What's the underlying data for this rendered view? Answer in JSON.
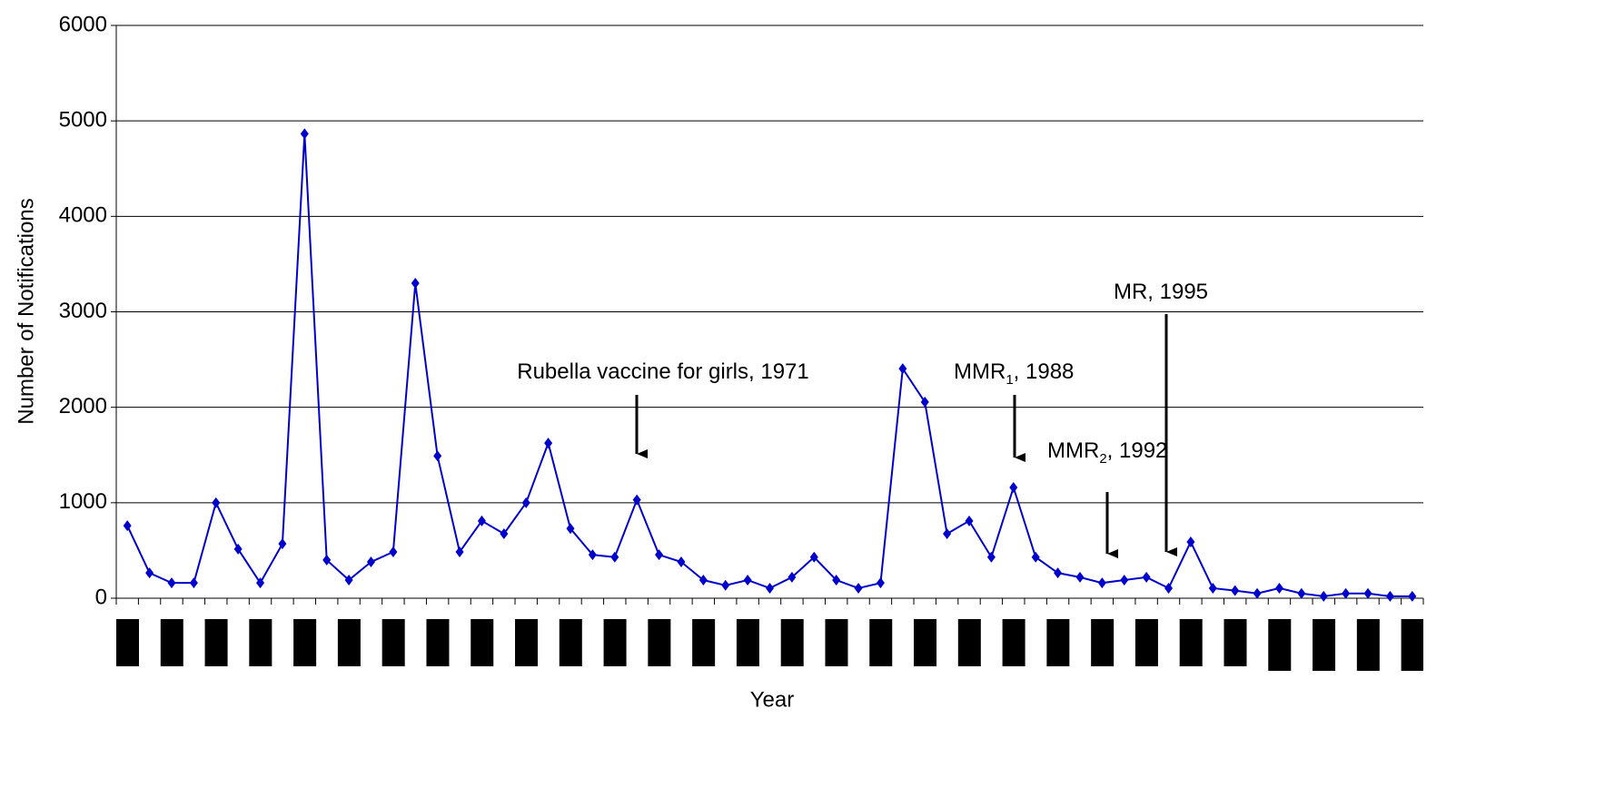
{
  "chart_data": {
    "type": "line",
    "x_label": "Year",
    "y_label": "Number of Notifications",
    "categories": [
      null,
      null,
      null,
      null,
      null,
      null,
      null,
      null,
      null,
      null,
      null,
      null,
      null,
      null,
      null,
      null,
      null,
      null,
      null,
      null,
      null,
      null,
      null,
      null,
      null,
      null,
      null,
      null,
      null,
      null,
      null,
      null,
      null,
      null,
      null,
      null,
      null,
      null,
      null,
      null,
      null,
      null,
      null,
      null,
      null,
      null,
      null,
      null,
      null,
      null,
      null,
      null,
      null,
      null,
      null,
      null,
      null,
      null,
      null
    ],
    "series": [
      {
        "name": null,
        "color": "#0000cc",
        "values": [
          760,
          265,
          160,
          160,
          1000,
          515,
          160,
          570,
          4865,
          400,
          190,
          380,
          485,
          3300,
          1490,
          485,
          810,
          675,
          1000,
          1625,
          730,
          455,
          430,
          1030,
          455,
          380,
          190,
          135,
          190,
          105,
          220,
          430,
          190,
          105,
          160,
          2405,
          2055,
          675,
          810,
          430,
          1160,
          430,
          265,
          220,
          160,
          190,
          220,
          105,
          590,
          105,
          80,
          50,
          105,
          50,
          20,
          50,
          50,
          20,
          20
        ]
      }
    ],
    "ylim": [
      0,
      6000
    ],
    "yticks": [
      0,
      1000,
      2000,
      3000,
      4000,
      5000,
      6000
    ],
    "grid": true,
    "annotations": [
      {
        "text": "Rubella vaccine for girls, 1971"
      },
      {
        "text": "MMR",
        "sub": "1",
        "suffix": ",  1988"
      },
      {
        "text": "MMR",
        "sub": "2",
        "suffix": ", 1992"
      },
      {
        "text": "MR,  1995"
      }
    ]
  }
}
